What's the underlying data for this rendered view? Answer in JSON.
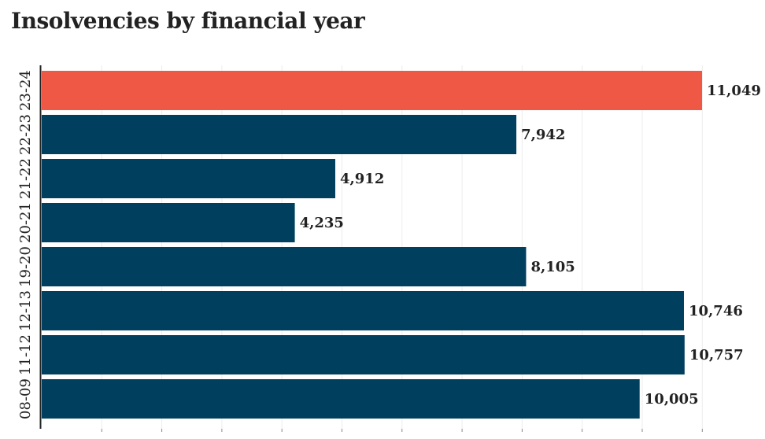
{
  "chart_data": {
    "type": "bar",
    "orientation": "horizontal",
    "title": "Insolvencies by financial year",
    "categories": [
      "23-24",
      "22-23",
      "21-22",
      "20-21",
      "19-20",
      "12-13",
      "11-12",
      "08-09"
    ],
    "values": [
      11049,
      7942,
      4912,
      4235,
      8105,
      10746,
      10757,
      10005
    ],
    "value_labels": [
      "11,049",
      "7,942",
      "4,912",
      "4,235",
      "8,105",
      "10,746",
      "10,757",
      "10,005"
    ],
    "highlight_category": "23-24",
    "xlim": [
      0,
      11049
    ],
    "grid": true,
    "xlabel": "",
    "ylabel": ""
  },
  "colors": {
    "bar": "#00405e",
    "highlight": "#ee5845",
    "grid": "#ececec",
    "axis": "#222222",
    "text": "#222222"
  }
}
